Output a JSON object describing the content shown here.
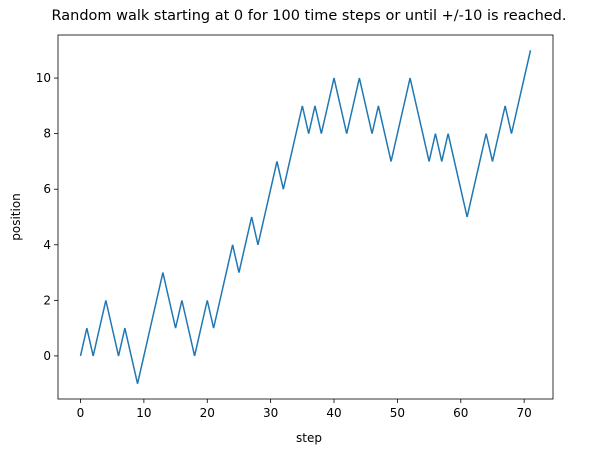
{
  "chart_data": {
    "type": "line",
    "title": "Random walk starting at 0 for 100 time steps or until +/-10 is reached.",
    "xlabel": "step",
    "ylabel": "position",
    "x": [
      0,
      1,
      2,
      3,
      4,
      5,
      6,
      7,
      8,
      9,
      10,
      11,
      12,
      13,
      14,
      15,
      16,
      17,
      18,
      19,
      20,
      21,
      22,
      23,
      24,
      25,
      26,
      27,
      28,
      29,
      30,
      31,
      32,
      33,
      34,
      35,
      36,
      37,
      38,
      39,
      40,
      41,
      42,
      43,
      44,
      45,
      46,
      47,
      48,
      49,
      50,
      51,
      52,
      53,
      54,
      55,
      56,
      57,
      58,
      59,
      60,
      61,
      62,
      63,
      64,
      65,
      66,
      67,
      68,
      69,
      70,
      71
    ],
    "values": [
      0,
      1,
      0,
      1,
      2,
      1,
      0,
      1,
      0,
      -1,
      0,
      1,
      2,
      3,
      2,
      1,
      2,
      1,
      0,
      1,
      2,
      1,
      2,
      3,
      4,
      3,
      4,
      5,
      4,
      5,
      6,
      7,
      6,
      7,
      8,
      9,
      8,
      9,
      8,
      9,
      10,
      9,
      8,
      9,
      10,
      9,
      8,
      9,
      8,
      7,
      8,
      9,
      10,
      9,
      8,
      7,
      8,
      7,
      8,
      7,
      6,
      5,
      6,
      7,
      8,
      7,
      8,
      9,
      8,
      9,
      10,
      11
    ],
    "color": "#1f77b4",
    "xlim": [
      -3.55,
      74.55
    ],
    "ylim": [
      -1.55,
      11.55
    ],
    "xticks": [
      0,
      10,
      20,
      30,
      40,
      50,
      60,
      70
    ],
    "yticks": [
      0,
      2,
      4,
      6,
      8,
      10
    ]
  }
}
